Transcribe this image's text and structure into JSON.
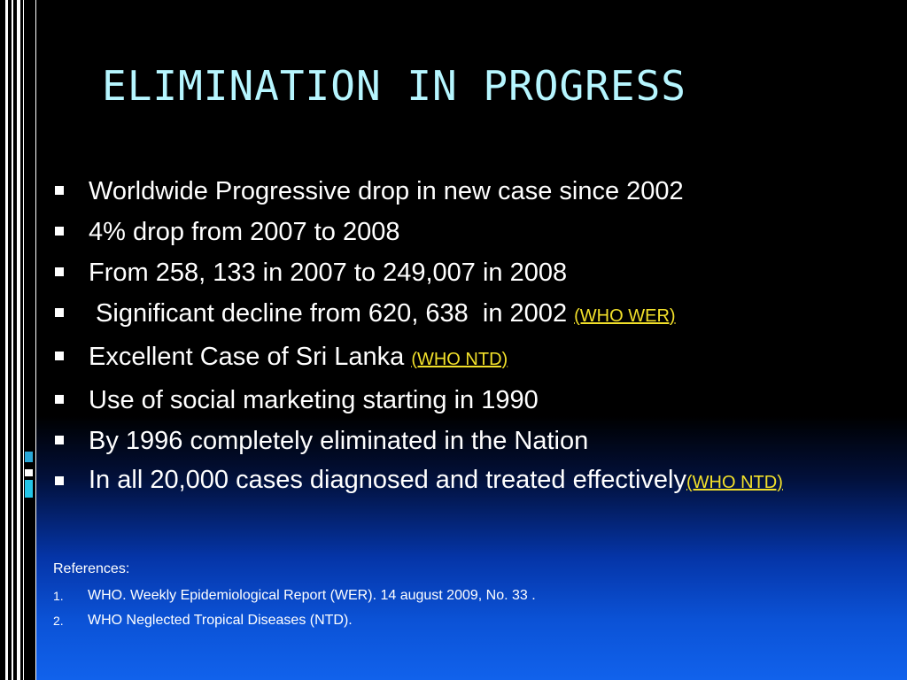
{
  "title": "ELIMINATION IN PROGRESS",
  "bullets": [
    {
      "text": "Worldwide Progressive drop in new case since 2002",
      "link": ""
    },
    {
      "text": "4% drop from 2007 to 2008",
      "link": ""
    },
    {
      "text": "From 258, 133 in 2007 to 249,007 in 2008",
      "link": ""
    },
    {
      "text": " Significant decline from 620, 638  in 2002 ",
      "link": "(WHO WER)"
    },
    {
      "text": "Excellent Case of Sri Lanka ",
      "link": "(WHO NTD)"
    },
    {
      "text": "Use of social marketing starting in 1990",
      "link": ""
    },
    {
      "text": "By 1996 completely eliminated in the Nation",
      "link": ""
    },
    {
      "text": "In all 20,000 cases diagnosed and treated effectively",
      "link": "(WHO NTD)"
    }
  ],
  "references": {
    "heading": "References:",
    "items": [
      {
        "num": "1.",
        "text": "WHO. Weekly Epidemiological Report (WER). 14 august 2009, No. 33 ."
      },
      {
        "num": "2.",
        "text": "WHO Neglected Tropical Diseases (NTD)."
      }
    ]
  },
  "colors": {
    "title": "#b6f6ff",
    "body_text": "#ffffff",
    "link": "#f2e02a",
    "background_top": "#000000",
    "background_bottom": "#1162ec"
  }
}
